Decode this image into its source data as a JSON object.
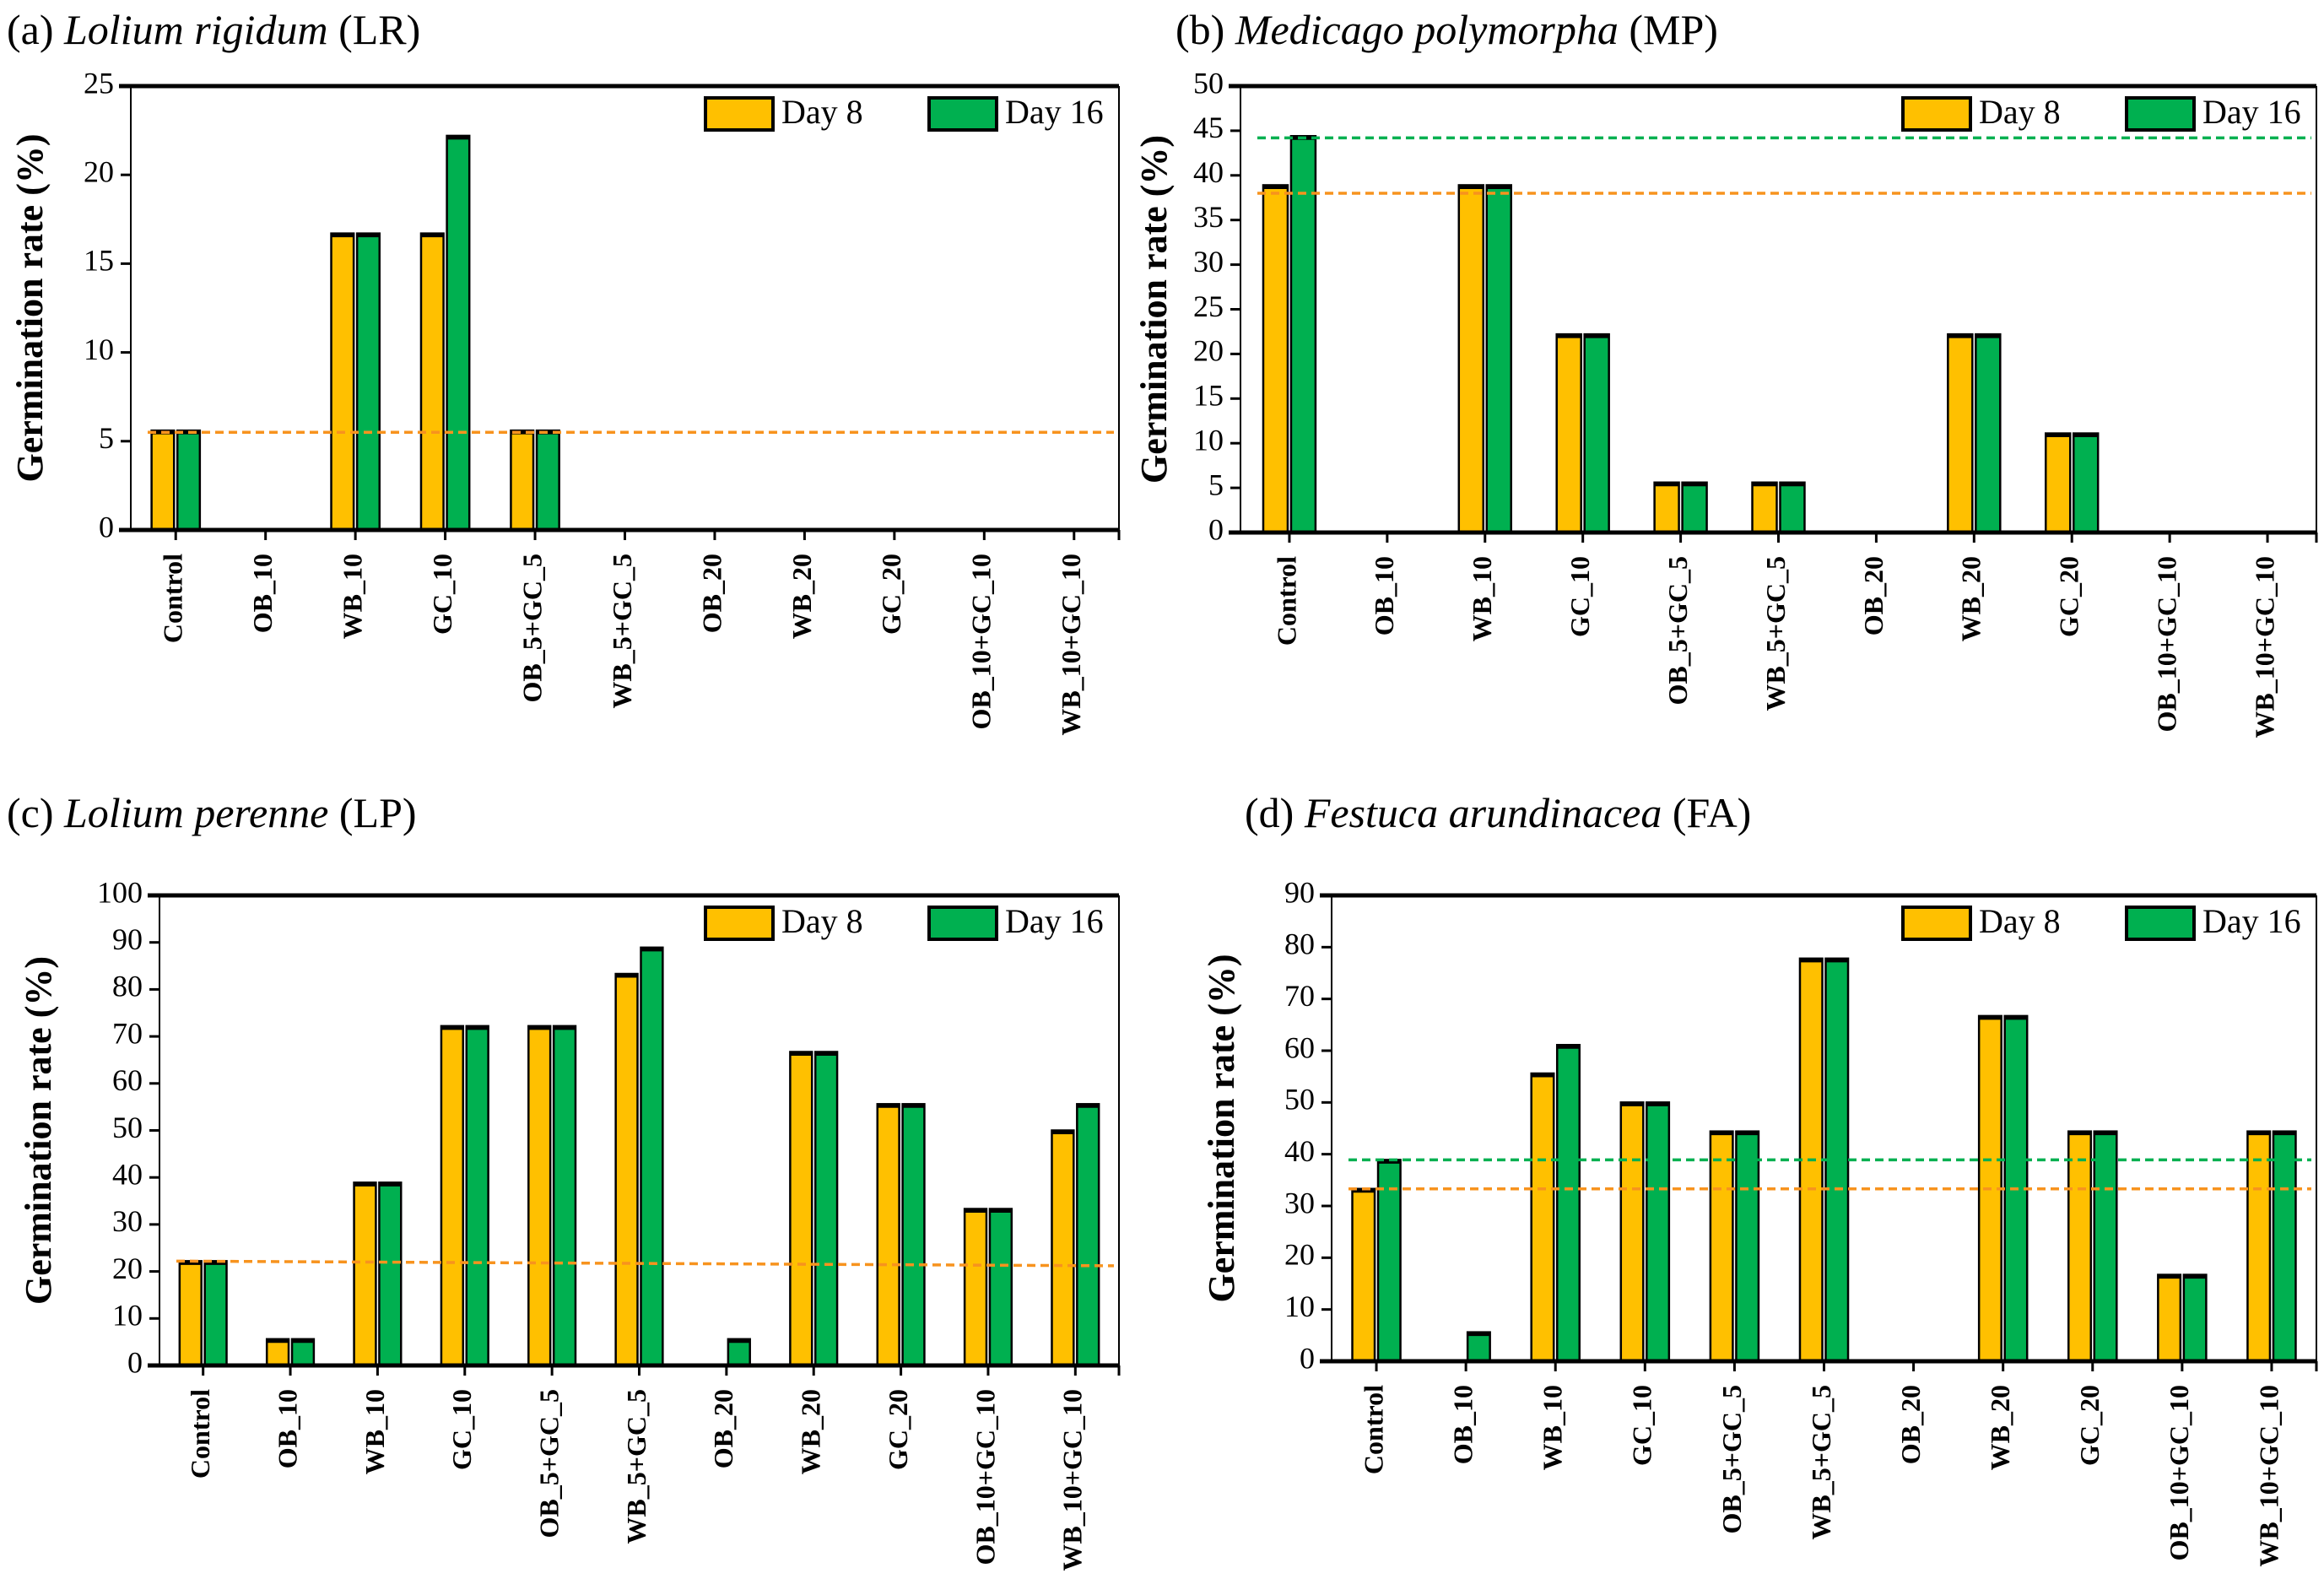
{
  "colors": {
    "day8": "#FFC000",
    "day16": "#00B050",
    "ref_day8": "#F7931E",
    "ref_day16": "#00B050",
    "axis": "#000000"
  },
  "chart_data": [
    {
      "type": "bar",
      "title_prefix": "(a) ",
      "title_species": "Lolium rigidum",
      "title_suffix": " (LR)",
      "ylabel": "Germination rate (%)",
      "xlabel": "",
      "ylim": [
        0,
        25
      ],
      "yticks": [
        0,
        5,
        10,
        15,
        20,
        25
      ],
      "categories": [
        "Control",
        "OB_10",
        "WB_10",
        "GC_10",
        "OB_5+GC_5",
        "WB_5+GC_5",
        "OB_20",
        "WB_20",
        "GC_20",
        "OB_10+GC_10",
        "WB_10+GC_10"
      ],
      "legend_position": "top-right",
      "series": [
        {
          "name": "Day 8",
          "values": [
            5.6,
            0,
            16.7,
            16.7,
            5.6,
            0,
            0,
            0,
            0,
            0,
            0
          ]
        },
        {
          "name": "Day 16",
          "values": [
            5.6,
            0,
            16.7,
            22.2,
            5.6,
            0,
            0,
            0,
            0,
            0,
            0
          ]
        }
      ],
      "reference_lines": [
        {
          "series": "Day 8",
          "start": 5.5,
          "end": 5.5
        }
      ]
    },
    {
      "type": "bar",
      "title_prefix": "(b) ",
      "title_species": "Medicago polymorpha",
      "title_suffix": " (MP)",
      "ylabel": "Germination rate (%)",
      "xlabel": "",
      "ylim": [
        0,
        50
      ],
      "yticks": [
        0,
        5,
        10,
        15,
        20,
        25,
        30,
        35,
        40,
        45,
        50
      ],
      "categories": [
        "Control",
        "OB_10",
        "WB_10",
        "GC_10",
        "OB_5+GC_5",
        "WB_5+GC_5",
        "OB_20",
        "WB_20",
        "GC_20",
        "OB_10+GC_10",
        "WB_10+GC_10"
      ],
      "legend_position": "top-right",
      "series": [
        {
          "name": "Day 8",
          "values": [
            38.9,
            0,
            38.9,
            22.2,
            5.6,
            5.6,
            0,
            22.2,
            11.1,
            0,
            0
          ]
        },
        {
          "name": "Day 16",
          "values": [
            44.4,
            0,
            38.9,
            22.2,
            5.6,
            5.6,
            0,
            22.2,
            11.1,
            0,
            0
          ]
        }
      ],
      "reference_lines": [
        {
          "series": "Day 16",
          "start": 44.2,
          "end": 44.2
        },
        {
          "series": "Day 8",
          "start": 38.0,
          "end": 38.0
        }
      ]
    },
    {
      "type": "bar",
      "title_prefix": "(c) ",
      "title_species": "Lolium perenne",
      "title_suffix": " (LP)",
      "ylabel": "Germination rate (%)",
      "xlabel": "",
      "ylim": [
        0,
        100
      ],
      "yticks": [
        0,
        10,
        20,
        30,
        40,
        50,
        60,
        70,
        80,
        90,
        100
      ],
      "categories": [
        "Control",
        "OB_10",
        "WB_10",
        "GC_10",
        "OB_5+GC_5",
        "WB_5+GC_5",
        "OB_20",
        "WB_20",
        "GC_20",
        "OB_10+GC_10",
        "WB_10+GC_10"
      ],
      "legend_position": "top-right",
      "series": [
        {
          "name": "Day 8",
          "values": [
            22.2,
            5.6,
            38.9,
            72.2,
            72.2,
            83.3,
            0,
            66.7,
            55.6,
            33.3,
            50.0
          ]
        },
        {
          "name": "Day 16",
          "values": [
            22.2,
            5.6,
            38.9,
            72.2,
            72.2,
            88.9,
            5.6,
            66.7,
            55.6,
            33.3,
            55.6
          ]
        }
      ],
      "reference_lines": [
        {
          "series": "Day 8",
          "start": 22.2,
          "end": 21.2
        }
      ]
    },
    {
      "type": "bar",
      "title_prefix": "(d) ",
      "title_species": "Festuca arundinacea",
      "title_suffix": " (FA)",
      "ylabel": "Germination rate (%)",
      "xlabel": "",
      "ylim": [
        0,
        90
      ],
      "yticks": [
        0,
        10,
        20,
        30,
        40,
        50,
        60,
        70,
        80,
        90
      ],
      "categories": [
        "Control",
        "OB_10",
        "WB_10",
        "GC_10",
        "OB_5+GC_5",
        "WB_5+GC_5",
        "OB_20",
        "WB_20",
        "GC_20",
        "OB_10+GC_10",
        "WB_10+GC_10"
      ],
      "legend_position": "top-right",
      "series": [
        {
          "name": "Day 8",
          "values": [
            33.3,
            0,
            55.6,
            50.0,
            44.4,
            77.8,
            0,
            66.7,
            44.4,
            16.7,
            44.4
          ]
        },
        {
          "name": "Day 16",
          "values": [
            38.9,
            5.6,
            61.1,
            50.0,
            44.4,
            77.8,
            0,
            66.7,
            44.4,
            16.7,
            44.4
          ]
        }
      ],
      "reference_lines": [
        {
          "series": "Day 16",
          "start": 38.9,
          "end": 38.9
        },
        {
          "series": "Day 8",
          "start": 33.3,
          "end": 33.3
        }
      ]
    }
  ]
}
